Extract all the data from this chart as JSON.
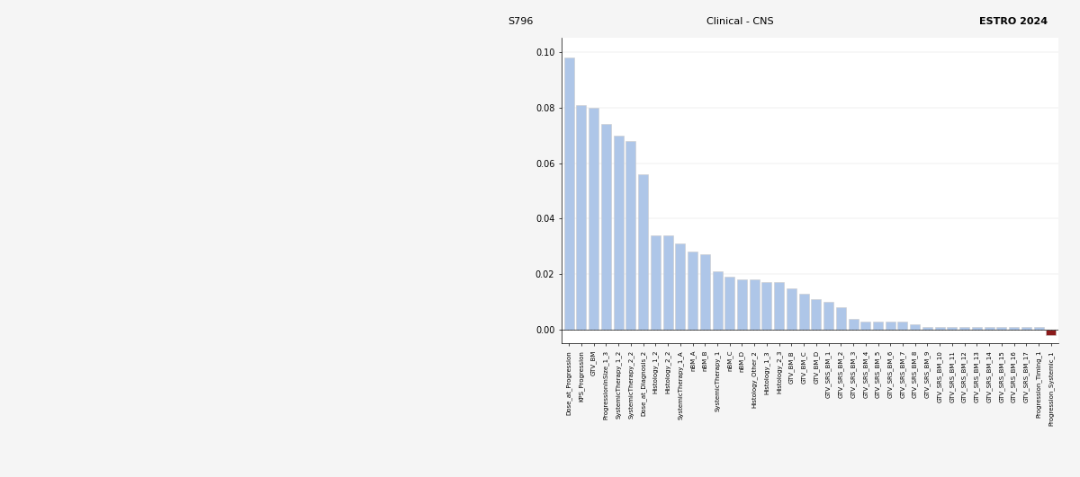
{
  "values": [
    0.098,
    0.081,
    0.08,
    0.074,
    0.07,
    0.068,
    0.056,
    0.034,
    0.034,
    0.031,
    0.028,
    0.027,
    0.021,
    0.019,
    0.018,
    0.018,
    0.017,
    0.017,
    0.015,
    0.013,
    0.011,
    0.01,
    0.008,
    0.004,
    0.003,
    0.003,
    0.003,
    0.003,
    0.002,
    0.001,
    0.001,
    0.001,
    0.001,
    0.001,
    0.001,
    0.001,
    0.001,
    0.001,
    0.001,
    -0.002
  ],
  "labels": [
    "Dose_at_Progression",
    "KPS_Progression",
    "GTV_BM",
    "ProgressionInSize_1_3",
    "SystemicTherapy_1_2",
    "SystemicTherapy_2_2",
    "Dose_at_Diagnosis_2",
    "Histology_1_2",
    "Histology_2_2",
    "SystemicTherapy_1_A",
    "nBM_A",
    "nBM_B",
    "SystemicTherapy_1",
    "nBM_C",
    "nBM_D",
    "Histology_Other_2",
    "Histology_1_3",
    "Histology_2_3",
    "GTV_BM_B",
    "GTV_BM_C",
    "GTV_BM_D",
    "GTV_SRS_BM_1",
    "GTV_SRS_BM_2",
    "GTV_SRS_BM_3",
    "GTV_SRS_BM_4",
    "GTV_SRS_BM_5",
    "GTV_SRS_BM_6",
    "GTV_SRS_BM_7",
    "GTV_SRS_BM_8",
    "GTV_SRS_BM_9",
    "GTV_SRS_BM_10",
    "GTV_SRS_BM_11",
    "GTV_SRS_BM_12",
    "GTV_SRS_BM_13",
    "GTV_SRS_BM_14",
    "GTV_SRS_BM_15",
    "GTV_SRS_BM_16",
    "GTV_SRS_BM_17",
    "Progression_Timing_1",
    "Progression_Systemic_1"
  ],
  "bar_colors_flag": [
    0,
    0,
    0,
    0,
    0,
    0,
    0,
    0,
    0,
    0,
    0,
    0,
    0,
    0,
    0,
    0,
    0,
    0,
    0,
    0,
    0,
    0,
    0,
    0,
    0,
    0,
    0,
    0,
    0,
    0,
    0,
    0,
    0,
    0,
    0,
    0,
    0,
    0,
    0,
    1
  ],
  "bar_color_pos": "#aec6e8",
  "bar_color_neg": "#8b1a1a",
  "ylim": [
    -0.005,
    0.105
  ],
  "yticks": [
    0.0,
    0.02,
    0.04,
    0.06,
    0.08,
    0.1
  ],
  "header_left": "S796",
  "header_center": "Clinical - CNS",
  "header_right": "ESTRO 2024",
  "background_color": "#f5f5f5",
  "plot_background": "#ffffff"
}
